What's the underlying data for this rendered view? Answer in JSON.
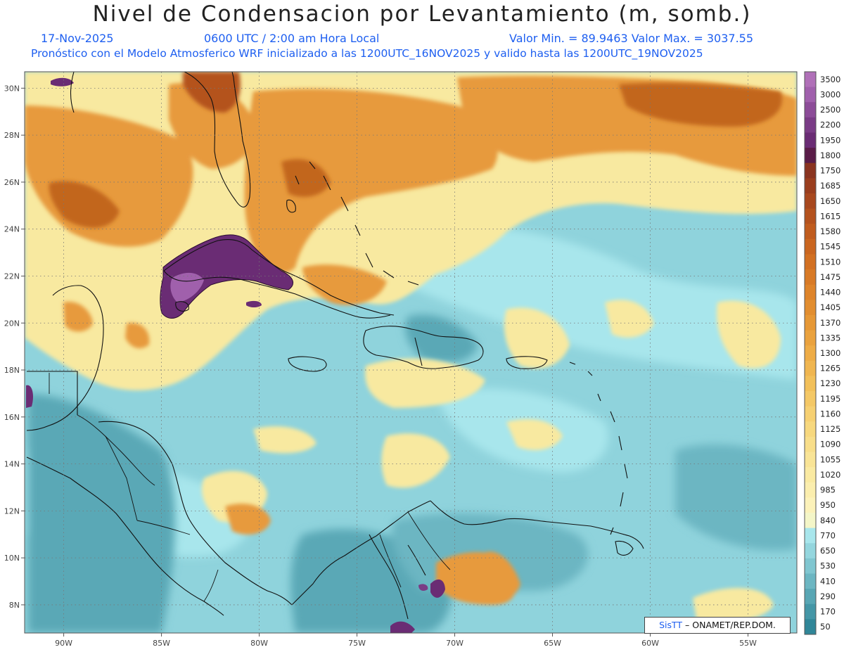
{
  "header": {
    "title": "Nivel de Condensacion por Levantamiento (m, somb.)",
    "date": "17-Nov-2025",
    "time": "0600 UTC / 2:00 am Hora Local",
    "min_max": "Valor Min. = 89.9463  Valor Max. = 3037.55",
    "description": "Pronóstico con el Modelo Atmosferico WRF inicializado a las 1200UTC_16NOV2025 y valido hasta las  1200UTC_19NOV2025"
  },
  "map": {
    "lon_range": [
      -92,
      -52.5
    ],
    "lat_range": [
      6.8,
      30.7
    ],
    "lon_ticks": [
      {
        "value": -90,
        "label": "90W"
      },
      {
        "value": -85,
        "label": "85W"
      },
      {
        "value": -80,
        "label": "80W"
      },
      {
        "value": -75,
        "label": "75W"
      },
      {
        "value": -70,
        "label": "70W"
      },
      {
        "value": -65,
        "label": "65W"
      },
      {
        "value": -60,
        "label": "60W"
      },
      {
        "value": -55,
        "label": "55W"
      }
    ],
    "lat_ticks": [
      {
        "value": 30,
        "label": "30N"
      },
      {
        "value": 28,
        "label": "28N"
      },
      {
        "value": 26,
        "label": "26N"
      },
      {
        "value": 24,
        "label": "24N"
      },
      {
        "value": 22,
        "label": "22N"
      },
      {
        "value": 20,
        "label": "20N"
      },
      {
        "value": 18,
        "label": "18N"
      },
      {
        "value": 16,
        "label": "16N"
      },
      {
        "value": 14,
        "label": "14N"
      },
      {
        "value": 12,
        "label": "12N"
      },
      {
        "value": 10,
        "label": "10N"
      },
      {
        "value": 8,
        "label": "8N"
      }
    ],
    "grid": true
  },
  "colorbar": {
    "levels": [
      {
        "label": "3500",
        "color": "#b070b8"
      },
      {
        "label": "3000",
        "color": "#a060ac"
      },
      {
        "label": "2500",
        "color": "#8c4c98"
      },
      {
        "label": "2200",
        "color": "#7a3c86"
      },
      {
        "label": "1950",
        "color": "#6a2c74"
      },
      {
        "label": "1800",
        "color": "#5a1c48"
      },
      {
        "label": "1750",
        "color": "#8a3420"
      },
      {
        "label": "1685",
        "color": "#9a3e1e"
      },
      {
        "label": "1650",
        "color": "#a8481e"
      },
      {
        "label": "1615",
        "color": "#b4521e"
      },
      {
        "label": "1580",
        "color": "#c05c1e"
      },
      {
        "label": "1545",
        "color": "#ca6620"
      },
      {
        "label": "1510",
        "color": "#d27022"
      },
      {
        "label": "1475",
        "color": "#d87a26"
      },
      {
        "label": "1440",
        "color": "#de842a"
      },
      {
        "label": "1405",
        "color": "#e28e30"
      },
      {
        "label": "1370",
        "color": "#e69836"
      },
      {
        "label": "1335",
        "color": "#eaa23e"
      },
      {
        "label": "1300",
        "color": "#eeac46"
      },
      {
        "label": "1265",
        "color": "#f0b650"
      },
      {
        "label": "1230",
        "color": "#f2c05a"
      },
      {
        "label": "1195",
        "color": "#f4c866"
      },
      {
        "label": "1160",
        "color": "#f6d072"
      },
      {
        "label": "1125",
        "color": "#f7d87e"
      },
      {
        "label": "1090",
        "color": "#f8de8a"
      },
      {
        "label": "1055",
        "color": "#f9e496"
      },
      {
        "label": "1020",
        "color": "#faeaa2"
      },
      {
        "label": "985",
        "color": "#fbeeae"
      },
      {
        "label": "950",
        "color": "#fcf2ba"
      },
      {
        "label": "840",
        "color": "#f4f6c8"
      },
      {
        "label": "770",
        "color": "#a8e6ec"
      },
      {
        "label": "650",
        "color": "#94d6de"
      },
      {
        "label": "530",
        "color": "#80c6d0"
      },
      {
        "label": "410",
        "color": "#6cb6c2"
      },
      {
        "label": "290",
        "color": "#58a6b4"
      },
      {
        "label": "170",
        "color": "#4496a6"
      },
      {
        "label": "50",
        "color": "#308698"
      }
    ]
  },
  "palette": {
    "ocean_base": "#8fd3dc",
    "ocean_light": "#a8e6ec",
    "ocean_dark": "#5aa8b6",
    "yellow": "#f8e9a0",
    "orange": "#e79a3c",
    "dark_orange": "#c2661e",
    "purple": "#6a2c74",
    "light_purple": "#a060ac"
  },
  "credit": {
    "logo": "SisTT",
    "text": "–  ONAMET/REP.DOM."
  }
}
